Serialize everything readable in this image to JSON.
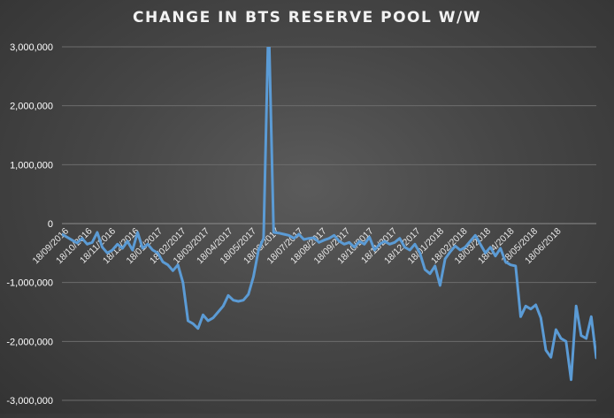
{
  "chart_data": {
    "type": "line",
    "title": "CHANGE IN BTS RESERVE POOL W/W",
    "xlabel": "",
    "ylabel": "",
    "ylim": [
      -3000000,
      3000000
    ],
    "yticks": [
      3000000,
      2000000,
      1000000,
      0,
      -1000000,
      -2000000,
      -3000000
    ],
    "ytick_labels": [
      "3,000,000",
      "2,000,000",
      "1,000,000",
      "0",
      "-1,000,000",
      "-2,000,000",
      "-3,000,000"
    ],
    "xtick_labels": [
      "18/09/2016",
      "18/10/2016",
      "18/11/2016",
      "18/12/2016",
      "18/01/2017",
      "18/02/2017",
      "18/03/2017",
      "18/04/2017",
      "18/05/2017",
      "18/06/2017",
      "18/07/2017",
      "18/08/2017",
      "18/09/2017",
      "18/10/2017",
      "18/11/2017",
      "18/12/2017",
      "18/01/2018",
      "18/02/2018",
      "18/03/2018",
      "18/04/2018",
      "18/05/2018",
      "18/06/2018"
    ],
    "grid": true,
    "line_color": "#5b9bd5",
    "series": [
      {
        "values": [
          -180000,
          -230000,
          -280000,
          -330000,
          -250000,
          -350000,
          -320000,
          -150000,
          -400000,
          -500000,
          -450000,
          -350000,
          -420000,
          -300000,
          -450000,
          -150000,
          -420000,
          -350000,
          -450000,
          -500000,
          -650000,
          -700000,
          -800000,
          -700000,
          -1000000,
          -1650000,
          -1700000,
          -1780000,
          -1550000,
          -1650000,
          -1600000,
          -1500000,
          -1400000,
          -1220000,
          -1300000,
          -1320000,
          -1300000,
          -1200000,
          -900000,
          -450000,
          -250000,
          3500000,
          -150000,
          -160000,
          -180000,
          -200000,
          -250000,
          -180000,
          -270000,
          -250000,
          -240000,
          -320000,
          -280000,
          -250000,
          -200000,
          -300000,
          -350000,
          -320000,
          -400000,
          -300000,
          -350000,
          -230000,
          -450000,
          -350000,
          -300000,
          -350000,
          -320000,
          -250000,
          -400000,
          -450000,
          -350000,
          -500000,
          -780000,
          -850000,
          -720000,
          -1050000,
          -600000,
          -480000,
          -380000,
          -450000,
          -400000,
          -300000,
          -200000,
          -350000,
          -500000,
          -400000,
          -550000,
          -420000,
          -650000,
          -700000,
          -720000,
          -1580000,
          -1400000,
          -1450000,
          -1380000,
          -1600000,
          -2150000,
          -2270000,
          -1800000,
          -1950000,
          -2000000,
          -2650000,
          -1400000,
          -1900000,
          -1950000,
          -1580000,
          -2280000
        ]
      }
    ]
  }
}
